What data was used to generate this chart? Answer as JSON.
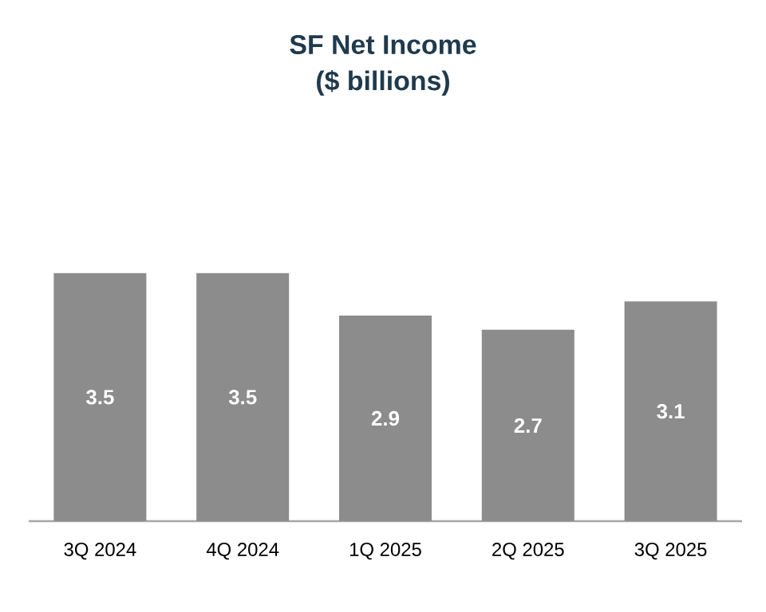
{
  "chart_data": {
    "type": "bar",
    "title": "SF Net Income",
    "subtitle": "($ billions)",
    "categories": [
      "3Q 2024",
      "4Q 2024",
      "1Q 2025",
      "2Q 2025",
      "3Q 2025"
    ],
    "values": [
      3.5,
      3.5,
      2.9,
      2.7,
      3.1
    ],
    "color": "#8c8c8c",
    "data_labels": true
  }
}
